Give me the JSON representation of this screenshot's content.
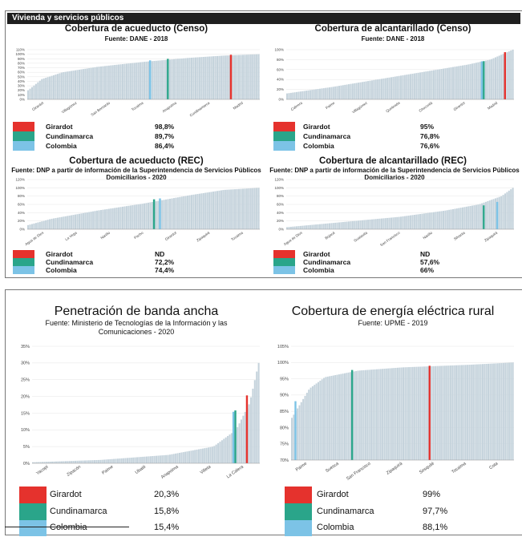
{
  "header": {
    "title": "Vivienda y servicios públicos"
  },
  "colors": {
    "girardot": "#e5322d",
    "cundinamarca": "#2aa58a",
    "colombia": "#7cc3e6",
    "bar": "#c5d3dc"
  },
  "chart_data": [
    {
      "id": "acueducto-censo",
      "type": "bar",
      "title": "Cobertura de acueducto (Censo)",
      "subtitle": "Fuente: DANE - 2018",
      "y_ticks": [
        "0%",
        "10%",
        "20%",
        "30%",
        "40%",
        "50%",
        "60%",
        "70%",
        "80%",
        "90%",
        "100%",
        "110%"
      ],
      "ylim": [
        0,
        110
      ],
      "x_labels": [
        "Girardot",
        "Villagómez",
        "San Bernardo",
        "Tocaima",
        "Anapoima",
        "Cundinamarca",
        "Madrid"
      ],
      "n_bars": 118,
      "curve": [
        [
          0,
          20
        ],
        [
          0.06,
          45
        ],
        [
          0.15,
          60
        ],
        [
          0.3,
          72
        ],
        [
          0.5,
          83
        ],
        [
          0.7,
          92
        ],
        [
          0.85,
          97
        ],
        [
          1,
          100
        ]
      ],
      "highlight": [
        {
          "series": "Colombia",
          "pos": 0.53,
          "value": 86.4
        },
        {
          "series": "Cundinamarca",
          "pos": 0.61,
          "value": 89.7
        },
        {
          "series": "Girardot",
          "pos": 0.88,
          "value": 98.8
        }
      ],
      "legend": [
        {
          "name": "Girardot",
          "value": "98,8%"
        },
        {
          "name": "Cundinamarca",
          "value": "89,7%"
        },
        {
          "name": "Colombia",
          "value": "86,4%"
        }
      ]
    },
    {
      "id": "alcantarillado-censo",
      "type": "bar",
      "title": "Cobertura de alcantarillado (Censo)",
      "subtitle": "Fuente: DANE - 2018",
      "y_ticks": [
        "0%",
        "20%",
        "40%",
        "60%",
        "80%",
        "100%"
      ],
      "ylim": [
        0,
        100
      ],
      "x_labels": [
        "Cabrera",
        "Paime",
        "Villagómez",
        "Quebrada",
        "Chocontá",
        "Girardot",
        "Madrid"
      ],
      "n_bars": 118,
      "curve": [
        [
          0,
          12
        ],
        [
          0.2,
          25
        ],
        [
          0.4,
          40
        ],
        [
          0.6,
          55
        ],
        [
          0.8,
          70
        ],
        [
          0.9,
          80
        ],
        [
          1,
          100
        ]
      ],
      "highlight": [
        {
          "series": "Colombia",
          "pos": 0.86,
          "value": 76.6
        },
        {
          "series": "Cundinamarca",
          "pos": 0.87,
          "value": 76.8
        },
        {
          "series": "Girardot",
          "pos": 0.97,
          "value": 95
        }
      ],
      "legend": [
        {
          "name": "Girardot",
          "value": "95%"
        },
        {
          "name": "Cundinamarca",
          "value": "76,8%"
        },
        {
          "name": "Colombia",
          "value": "76,6%"
        }
      ]
    },
    {
      "id": "acueducto-rec",
      "type": "bar",
      "title": "Cobertura de acueducto (REC)",
      "subtitle": "Fuente: DNP a partir de información de la Superintendencia de Servicios Públicos Domiciliarios - 2020",
      "y_ticks": [
        "0%",
        "20%",
        "40%",
        "60%",
        "80%",
        "100%",
        "120%"
      ],
      "ylim": [
        0,
        120
      ],
      "x_labels": [
        "Agua de Dios",
        "La Vega",
        "Nariño",
        "Pacho",
        "Girardot",
        "Zipaquirá",
        "Tocaima"
      ],
      "n_bars": 118,
      "curve": [
        [
          0,
          10
        ],
        [
          0.1,
          25
        ],
        [
          0.3,
          45
        ],
        [
          0.5,
          62
        ],
        [
          0.7,
          82
        ],
        [
          0.85,
          95
        ],
        [
          1,
          100
        ]
      ],
      "highlight": [
        {
          "series": "Cundinamarca",
          "pos": 0.55,
          "value": 72.2
        },
        {
          "series": "Colombia",
          "pos": 0.57,
          "value": 74.4
        }
      ],
      "legend": [
        {
          "name": "Girardot",
          "value": "ND"
        },
        {
          "name": "Cundinamarca",
          "value": "72,2%"
        },
        {
          "name": "Colombia",
          "value": "74,4%"
        }
      ]
    },
    {
      "id": "alcantarillado-rec",
      "type": "bar",
      "title": "Cobertura de alcantarillado (REC)",
      "subtitle": "Fuente: DNP a partir de información de la Superintendencia de Servicios Públicos Domiciliarios - 2020",
      "y_ticks": [
        "0%",
        "20%",
        "40%",
        "60%",
        "80%",
        "100%",
        "120%"
      ],
      "ylim": [
        0,
        120
      ],
      "x_labels": [
        "Agua de Dios",
        "Bojacá",
        "Guatavita",
        "San Francisco",
        "Nariño",
        "Silvania",
        "Zipaquirá"
      ],
      "n_bars": 118,
      "curve": [
        [
          0,
          5
        ],
        [
          0.2,
          15
        ],
        [
          0.5,
          30
        ],
        [
          0.7,
          45
        ],
        [
          0.85,
          60
        ],
        [
          0.95,
          80
        ],
        [
          1,
          100
        ]
      ],
      "highlight": [
        {
          "series": "Cundinamarca",
          "pos": 0.87,
          "value": 57.6
        },
        {
          "series": "Colombia",
          "pos": 0.93,
          "value": 66
        }
      ],
      "legend": [
        {
          "name": "Girardot",
          "value": "ND"
        },
        {
          "name": "Cundinamarca",
          "value": "57,6%"
        },
        {
          "name": "Colombia",
          "value": "66%"
        }
      ]
    },
    {
      "id": "banda-ancha",
      "type": "bar",
      "title": "Penetración de banda ancha",
      "subtitle": "Fuente: Ministerio de Tecnologías de la Información y las Comunicaciones - 2020",
      "y_ticks": [
        "0%",
        "5%",
        "10%",
        "15%",
        "20%",
        "25%",
        "30%",
        "35%"
      ],
      "ylim": [
        0,
        35
      ],
      "x_labels": [
        "Yacopí",
        "Zipacón",
        "Paime",
        "Ubaté",
        "Anapoima",
        "Villeta",
        "La Calera"
      ],
      "n_bars": 118,
      "curve": [
        [
          0,
          0.3
        ],
        [
          0.3,
          1
        ],
        [
          0.6,
          2.5
        ],
        [
          0.8,
          5
        ],
        [
          0.9,
          10
        ],
        [
          0.96,
          18
        ],
        [
          1,
          30
        ]
      ],
      "highlight": [
        {
          "series": "Colombia",
          "pos": 0.89,
          "value": 15.4
        },
        {
          "series": "Cundinamarca",
          "pos": 0.9,
          "value": 15.8
        },
        {
          "series": "Girardot",
          "pos": 0.95,
          "value": 20.3
        }
      ],
      "legend": [
        {
          "name": "Girardot",
          "value": "20,3%"
        },
        {
          "name": "Cundinamarca",
          "value": "15,8%"
        },
        {
          "name": "Colombia",
          "value": "15,4%"
        }
      ]
    },
    {
      "id": "energia-rural",
      "type": "bar",
      "title": "Cobertura de energía eléctrica rural",
      "subtitle": "Fuente: UPME - 2019",
      "y_ticks": [
        "70%",
        "75%",
        "80%",
        "85%",
        "90%",
        "95%",
        "100%",
        "105%"
      ],
      "ylim": [
        70,
        105
      ],
      "x_labels": [
        "Paime",
        "Suesca",
        "San Francisco",
        "Zipaquirá",
        "Sesquilé",
        "Tocaima",
        "Cota"
      ],
      "n_bars": 118,
      "curve": [
        [
          0,
          83
        ],
        [
          0.08,
          92
        ],
        [
          0.15,
          95.5
        ],
        [
          0.3,
          97.5
        ],
        [
          0.5,
          98.5
        ],
        [
          0.8,
          99.3
        ],
        [
          1,
          100
        ]
      ],
      "highlight": [
        {
          "series": "Colombia",
          "pos": 0.02,
          "value": 88.1
        },
        {
          "series": "Cundinamarca",
          "pos": 0.27,
          "value": 97.7
        },
        {
          "series": "Girardot",
          "pos": 0.62,
          "value": 99
        }
      ],
      "legend": [
        {
          "name": "Girardot",
          "value": "99%"
        },
        {
          "name": "Cundinamarca",
          "value": "97,7%"
        },
        {
          "name": "Colombia",
          "value": "88,1%"
        }
      ]
    }
  ]
}
